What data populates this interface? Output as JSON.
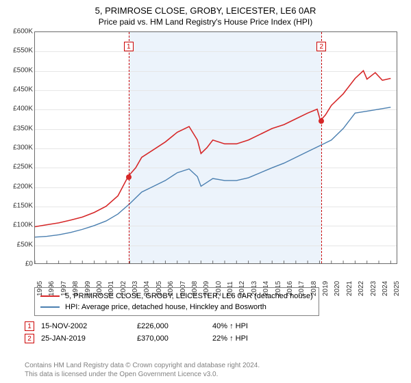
{
  "title": {
    "line1": "5, PRIMROSE CLOSE, GROBY, LEICESTER, LE6 0AR",
    "line2": "Price paid vs. HM Land Registry's House Price Index (HPI)"
  },
  "chart": {
    "type": "line",
    "background_color": "#ffffff",
    "grid_color": "#e6e6e6",
    "border_color": "#6a6a6a",
    "shade_color": "#ecf3fb",
    "x": {
      "min": 1995,
      "max": 2025.5,
      "ticks": [
        1995,
        1996,
        1997,
        1998,
        1999,
        2000,
        2001,
        2002,
        2003,
        2004,
        2005,
        2006,
        2007,
        2008,
        2009,
        2010,
        2011,
        2012,
        2013,
        2014,
        2015,
        2016,
        2017,
        2018,
        2019,
        2020,
        2021,
        2022,
        2023,
        2024,
        2025
      ],
      "label_fontsize": 10
    },
    "y": {
      "min": 0,
      "max": 600000,
      "step": 50000,
      "labels": [
        "£0",
        "£50K",
        "£100K",
        "£150K",
        "£200K",
        "£250K",
        "£300K",
        "£350K",
        "£400K",
        "£450K",
        "£500K",
        "£550K",
        "£600K"
      ],
      "label_fontsize": 10
    },
    "series": [
      {
        "name": "property",
        "legend": "5, PRIMROSE CLOSE, GROBY, LEICESTER, LE6 0AR (detached house)",
        "color": "#d62728",
        "line_width": 1.6,
        "points": [
          [
            1995,
            95000
          ],
          [
            1996,
            100000
          ],
          [
            1997,
            105000
          ],
          [
            1998,
            112000
          ],
          [
            1999,
            120000
          ],
          [
            2000,
            132000
          ],
          [
            2001,
            148000
          ],
          [
            2002,
            175000
          ],
          [
            2002.87,
            226000
          ],
          [
            2003.5,
            248000
          ],
          [
            2004,
            275000
          ],
          [
            2005,
            295000
          ],
          [
            2006,
            315000
          ],
          [
            2007,
            340000
          ],
          [
            2008,
            355000
          ],
          [
            2008.7,
            320000
          ],
          [
            2009,
            285000
          ],
          [
            2009.5,
            300000
          ],
          [
            2010,
            320000
          ],
          [
            2011,
            310000
          ],
          [
            2012,
            310000
          ],
          [
            2013,
            320000
          ],
          [
            2014,
            335000
          ],
          [
            2015,
            350000
          ],
          [
            2016,
            360000
          ],
          [
            2017,
            375000
          ],
          [
            2018,
            390000
          ],
          [
            2018.8,
            400000
          ],
          [
            2019.07,
            370000
          ],
          [
            2019.5,
            385000
          ],
          [
            2020,
            410000
          ],
          [
            2021,
            440000
          ],
          [
            2022,
            480000
          ],
          [
            2022.7,
            500000
          ],
          [
            2023,
            478000
          ],
          [
            2023.7,
            495000
          ],
          [
            2024.3,
            475000
          ],
          [
            2025,
            480000
          ]
        ]
      },
      {
        "name": "hpi",
        "legend": "HPI: Average price, detached house, Hinckley and Bosworth",
        "color": "#4a7fb0",
        "line_width": 1.4,
        "points": [
          [
            1995,
            68000
          ],
          [
            1996,
            70000
          ],
          [
            1997,
            74000
          ],
          [
            1998,
            80000
          ],
          [
            1999,
            88000
          ],
          [
            2000,
            98000
          ],
          [
            2001,
            110000
          ],
          [
            2002,
            128000
          ],
          [
            2003,
            155000
          ],
          [
            2004,
            185000
          ],
          [
            2005,
            200000
          ],
          [
            2006,
            215000
          ],
          [
            2007,
            235000
          ],
          [
            2008,
            245000
          ],
          [
            2008.7,
            225000
          ],
          [
            2009,
            200000
          ],
          [
            2009.5,
            210000
          ],
          [
            2010,
            220000
          ],
          [
            2011,
            215000
          ],
          [
            2012,
            215000
          ],
          [
            2013,
            222000
          ],
          [
            2014,
            235000
          ],
          [
            2015,
            248000
          ],
          [
            2016,
            260000
          ],
          [
            2017,
            275000
          ],
          [
            2018,
            290000
          ],
          [
            2019,
            305000
          ],
          [
            2020,
            320000
          ],
          [
            2021,
            350000
          ],
          [
            2022,
            390000
          ],
          [
            2023,
            395000
          ],
          [
            2024,
            400000
          ],
          [
            2025,
            405000
          ]
        ]
      }
    ],
    "markers": [
      {
        "num": "1",
        "x": 2002.87,
        "y": 226000
      },
      {
        "num": "2",
        "x": 2019.07,
        "y": 370000
      }
    ],
    "shade_range": [
      2002.87,
      2019.07
    ]
  },
  "sales": [
    {
      "num": "1",
      "date": "15-NOV-2002",
      "price": "£226,000",
      "hpi": "40% ↑ HPI"
    },
    {
      "num": "2",
      "date": "25-JAN-2019",
      "price": "£370,000",
      "hpi": "22% ↑ HPI"
    }
  ],
  "attribution": {
    "line1": "Contains HM Land Registry data © Crown copyright and database right 2024.",
    "line2": "This data is licensed under the Open Government Licence v3.0."
  }
}
